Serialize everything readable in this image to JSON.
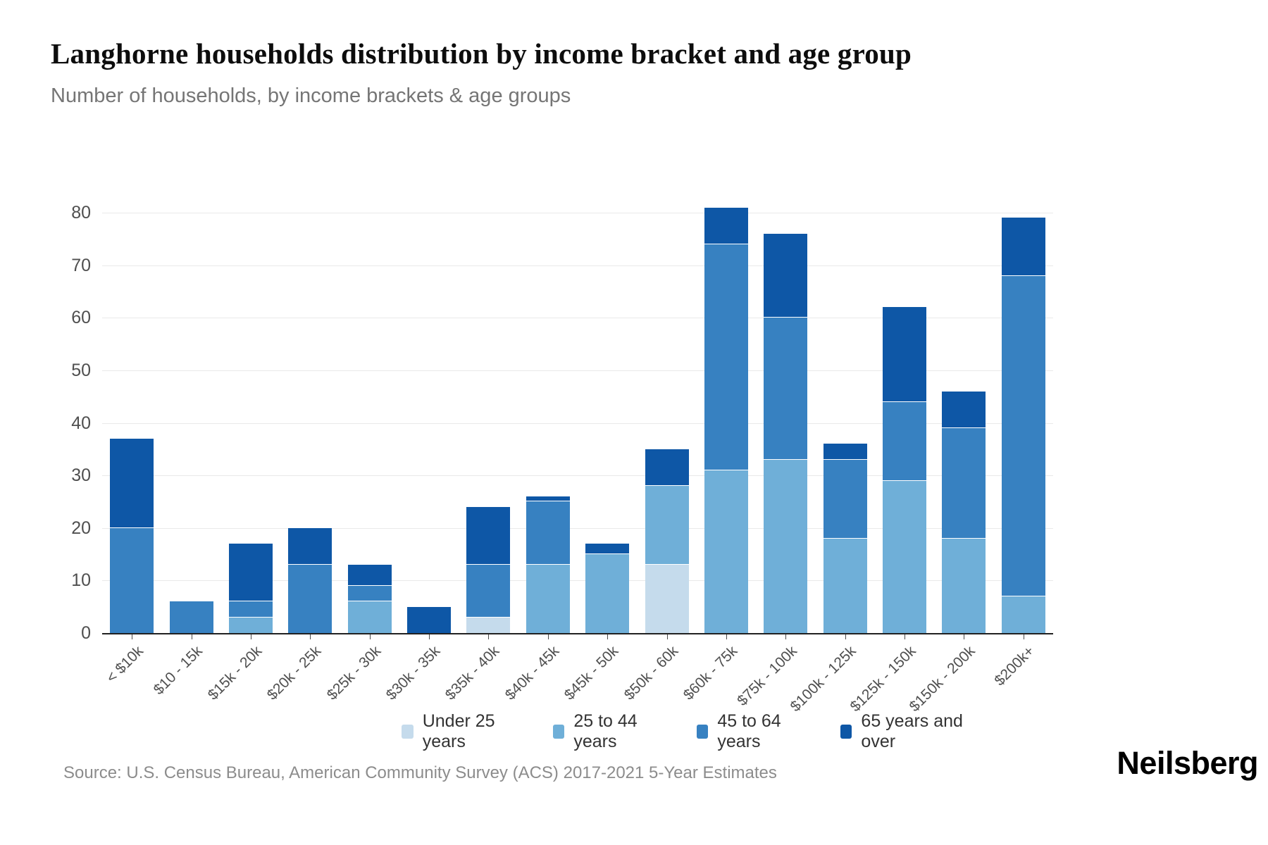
{
  "header": {
    "title": "Langhorne households distribution by income bracket and age group",
    "subtitle": "Number of households, by income brackets & age groups"
  },
  "chart_data": {
    "type": "bar",
    "stacked": true,
    "title": "Langhorne households distribution by income bracket and age group",
    "subtitle": "Number of households, by income brackets & age groups",
    "categories": [
      "< $10k",
      "$10 - 15k",
      "$15k - 20k",
      "$20k - 25k",
      "$25k - 30k",
      "$30k - 35k",
      "$35k - 40k",
      "$40k - 45k",
      "$45k - 50k",
      "$50k - 60k",
      "$60k - 75k",
      "$75k - 100k",
      "$100k - 125k",
      "$125k - 150k",
      "$150k - 200k",
      "$200k+"
    ],
    "series": [
      {
        "name": "Under 25 years",
        "color": "#c5dbec",
        "values": [
          0,
          0,
          0,
          0,
          0,
          0,
          3,
          0,
          0,
          13,
          0,
          0,
          0,
          0,
          0,
          0
        ]
      },
      {
        "name": "25 to 44 years",
        "color": "#6fafd8",
        "values": [
          0,
          0,
          3,
          0,
          6,
          0,
          0,
          13,
          15,
          15,
          31,
          33,
          18,
          29,
          18,
          7
        ]
      },
      {
        "name": "45 to 64 years",
        "color": "#3781c1",
        "values": [
          20,
          6,
          3,
          13,
          3,
          0,
          10,
          12,
          0,
          0,
          43,
          27,
          15,
          15,
          21,
          61
        ]
      },
      {
        "name": "65 years and over",
        "color": "#0e57a6",
        "values": [
          17,
          0,
          11,
          7,
          4,
          5,
          11,
          1,
          2,
          7,
          7,
          16,
          3,
          18,
          7,
          11
        ]
      }
    ],
    "totals": [
      37,
      6,
      17,
      20,
      13,
      5,
      24,
      26,
      17,
      35,
      81,
      76,
      36,
      62,
      46,
      79
    ],
    "xlabel": "",
    "ylabel": "",
    "ylim": [
      0,
      80
    ],
    "ytick_step": 10,
    "grid": true,
    "legend_position": "bottom"
  },
  "axes": {
    "y_ticks": [
      0,
      10,
      20,
      30,
      40,
      50,
      60,
      70,
      80
    ]
  },
  "footer": {
    "source": "Source: U.S. Census Bureau, American Community Survey (ACS) 2017-2021 5-Year Estimates",
    "brand": "Neilsberg"
  }
}
